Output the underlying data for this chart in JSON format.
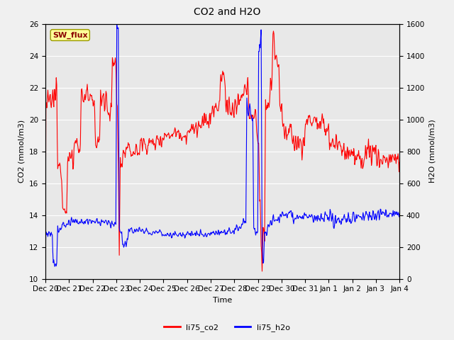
{
  "title": "CO2 and H2O",
  "xlabel": "Time",
  "ylabel_left": "CO2 (mmol/m3)",
  "ylabel_right": "H2O (mmol/m3)",
  "ylim_left": [
    10,
    26
  ],
  "ylim_right": [
    0,
    1600
  ],
  "co2_color": "red",
  "h2o_color": "blue",
  "legend_co2": "li75_co2",
  "legend_h2o": "li75_h2o",
  "sw_flux_label": "SW_flux",
  "sw_flux_bg": "#ffff99",
  "sw_flux_border": "#999900",
  "sw_flux_text_color": "#8b0000",
  "bg_color": "#e8e8e8",
  "fig_bg": "#f0f0f0",
  "xtick_labels": [
    "Dec 20",
    "Dec 21",
    "Dec 22",
    "Dec 23",
    "Dec 24",
    "Dec 25",
    "Dec 26",
    "Dec 27",
    "Dec 28",
    "Dec 29",
    "Dec 30",
    "Dec 31",
    "Jan 1",
    "Jan 2",
    "Jan 3",
    "Jan 4"
  ],
  "yticks_left": [
    10,
    12,
    14,
    16,
    18,
    20,
    22,
    24,
    26
  ],
  "yticks_right": [
    0,
    200,
    400,
    600,
    800,
    1000,
    1200,
    1400,
    1600
  ],
  "linewidth": 0.8
}
